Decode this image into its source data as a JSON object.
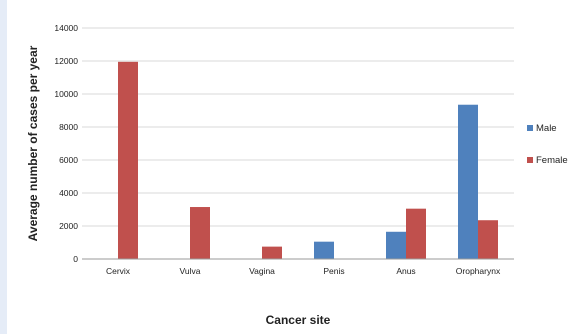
{
  "chart_data": {
    "type": "bar",
    "title": "",
    "xlabel": "Cancer site",
    "ylabel": "Average number of cases per year",
    "categories": [
      "Cervix",
      "Vulva",
      "Vagina",
      "Penis",
      "Anus",
      "Oropharynx"
    ],
    "series": [
      {
        "name": "Male",
        "color": "#4f81bd",
        "values": [
          null,
          null,
          null,
          1050,
          1650,
          9350
        ]
      },
      {
        "name": "Female",
        "color": "#c0504d",
        "values": [
          11950,
          3150,
          750,
          null,
          3050,
          2350
        ]
      }
    ],
    "ylim": [
      0,
      14000
    ],
    "yticks": [
      0,
      2000,
      4000,
      6000,
      8000,
      10000,
      12000,
      14000
    ],
    "grid": true,
    "legend_position": "right"
  }
}
